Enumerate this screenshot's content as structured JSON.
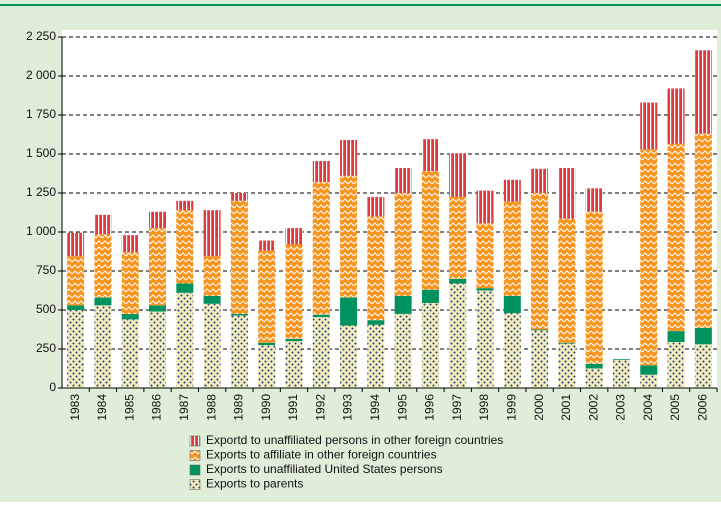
{
  "chart_data": {
    "type": "bar",
    "stacked": true,
    "categories": [
      "1983",
      "1984",
      "1985",
      "1986",
      "1987",
      "1988",
      "1989",
      "1990",
      "1991",
      "1992",
      "1993",
      "1994",
      "1995",
      "1996",
      "1997",
      "1998",
      "1999",
      "2000",
      "2001",
      "2002",
      "2003",
      "2004",
      "2005",
      "2006"
    ],
    "series": [
      {
        "name": "Exports to parents",
        "color": "#f3ecbc",
        "values": [
          500,
          530,
          440,
          490,
          610,
          540,
          465,
          275,
          300,
          455,
          400,
          405,
          475,
          545,
          670,
          625,
          480,
          370,
          285,
          125,
          180,
          85,
          295,
          280
        ]
      },
      {
        "name": "Exports to unaffiliated United States persons",
        "color": "#00935f",
        "values": [
          30,
          50,
          35,
          40,
          60,
          50,
          10,
          15,
          15,
          15,
          180,
          30,
          115,
          85,
          30,
          15,
          110,
          5,
          5,
          30,
          5,
          60,
          70,
          105
        ]
      },
      {
        "name": "Exports to affiliate in other foreign countries",
        "color": "#f7941d",
        "values": [
          315,
          405,
          395,
          495,
          470,
          255,
          725,
          590,
          605,
          850,
          780,
          665,
          660,
          760,
          525,
          415,
          605,
          875,
          795,
          975,
          0,
          1385,
          1200,
          1245
        ]
      },
      {
        "name": "Exportd to unaffiliated persons in other foreign countries",
        "color": "#e0393e",
        "values": [
          150,
          125,
          110,
          105,
          60,
          295,
          50,
          65,
          105,
          135,
          230,
          125,
          160,
          205,
          280,
          210,
          140,
          155,
          325,
          150,
          0,
          300,
          355,
          535
        ]
      }
    ],
    "ylim": [
      0,
      2250
    ],
    "yticks": [
      0,
      250,
      500,
      750,
      {
        "value": 1000,
        "label": "1 000"
      },
      {
        "value": 1250,
        "label": "1 250"
      },
      {
        "value": 1500,
        "label": "1 500"
      },
      {
        "value": 1750,
        "label": "1 750"
      },
      {
        "value": 2000,
        "label": "2 000"
      },
      {
        "value": 2250,
        "label": "2 250"
      }
    ],
    "grid": true
  }
}
